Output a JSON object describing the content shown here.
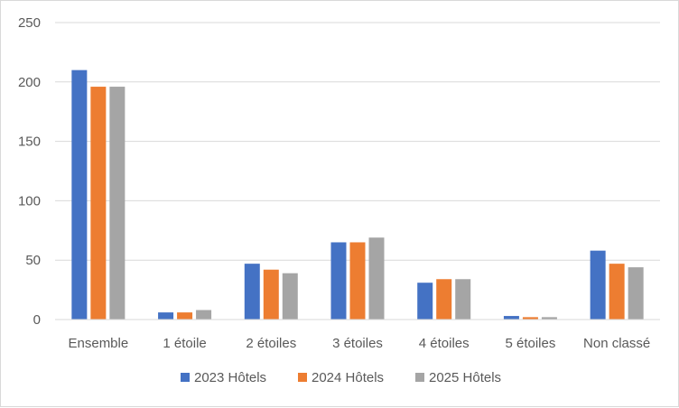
{
  "chart_data": {
    "type": "bar",
    "title": "",
    "xlabel": "",
    "ylabel": "",
    "ylim": [
      0,
      250
    ],
    "yticks": [
      0,
      50,
      100,
      150,
      200,
      250
    ],
    "grid": true,
    "legend_position": "bottom",
    "categories": [
      "Ensemble",
      "1 étoile",
      "2 étoiles",
      "3 étoiles",
      "4 étoiles",
      "5 étoiles",
      "Non classé"
    ],
    "series": [
      {
        "name": "2023 Hôtels",
        "color": "#4472C4",
        "values": [
          210,
          6,
          47,
          65,
          31,
          3,
          58
        ]
      },
      {
        "name": "2024 Hôtels",
        "color": "#ED7D31",
        "values": [
          196,
          6,
          42,
          65,
          34,
          2,
          47
        ]
      },
      {
        "name": "2025 Hôtels",
        "color": "#A5A5A5",
        "values": [
          196,
          8,
          39,
          69,
          34,
          2,
          44
        ]
      }
    ]
  },
  "colors": {
    "gridline": "#d9d9d9",
    "axis": "#d9d9d9",
    "text": "#595959"
  }
}
